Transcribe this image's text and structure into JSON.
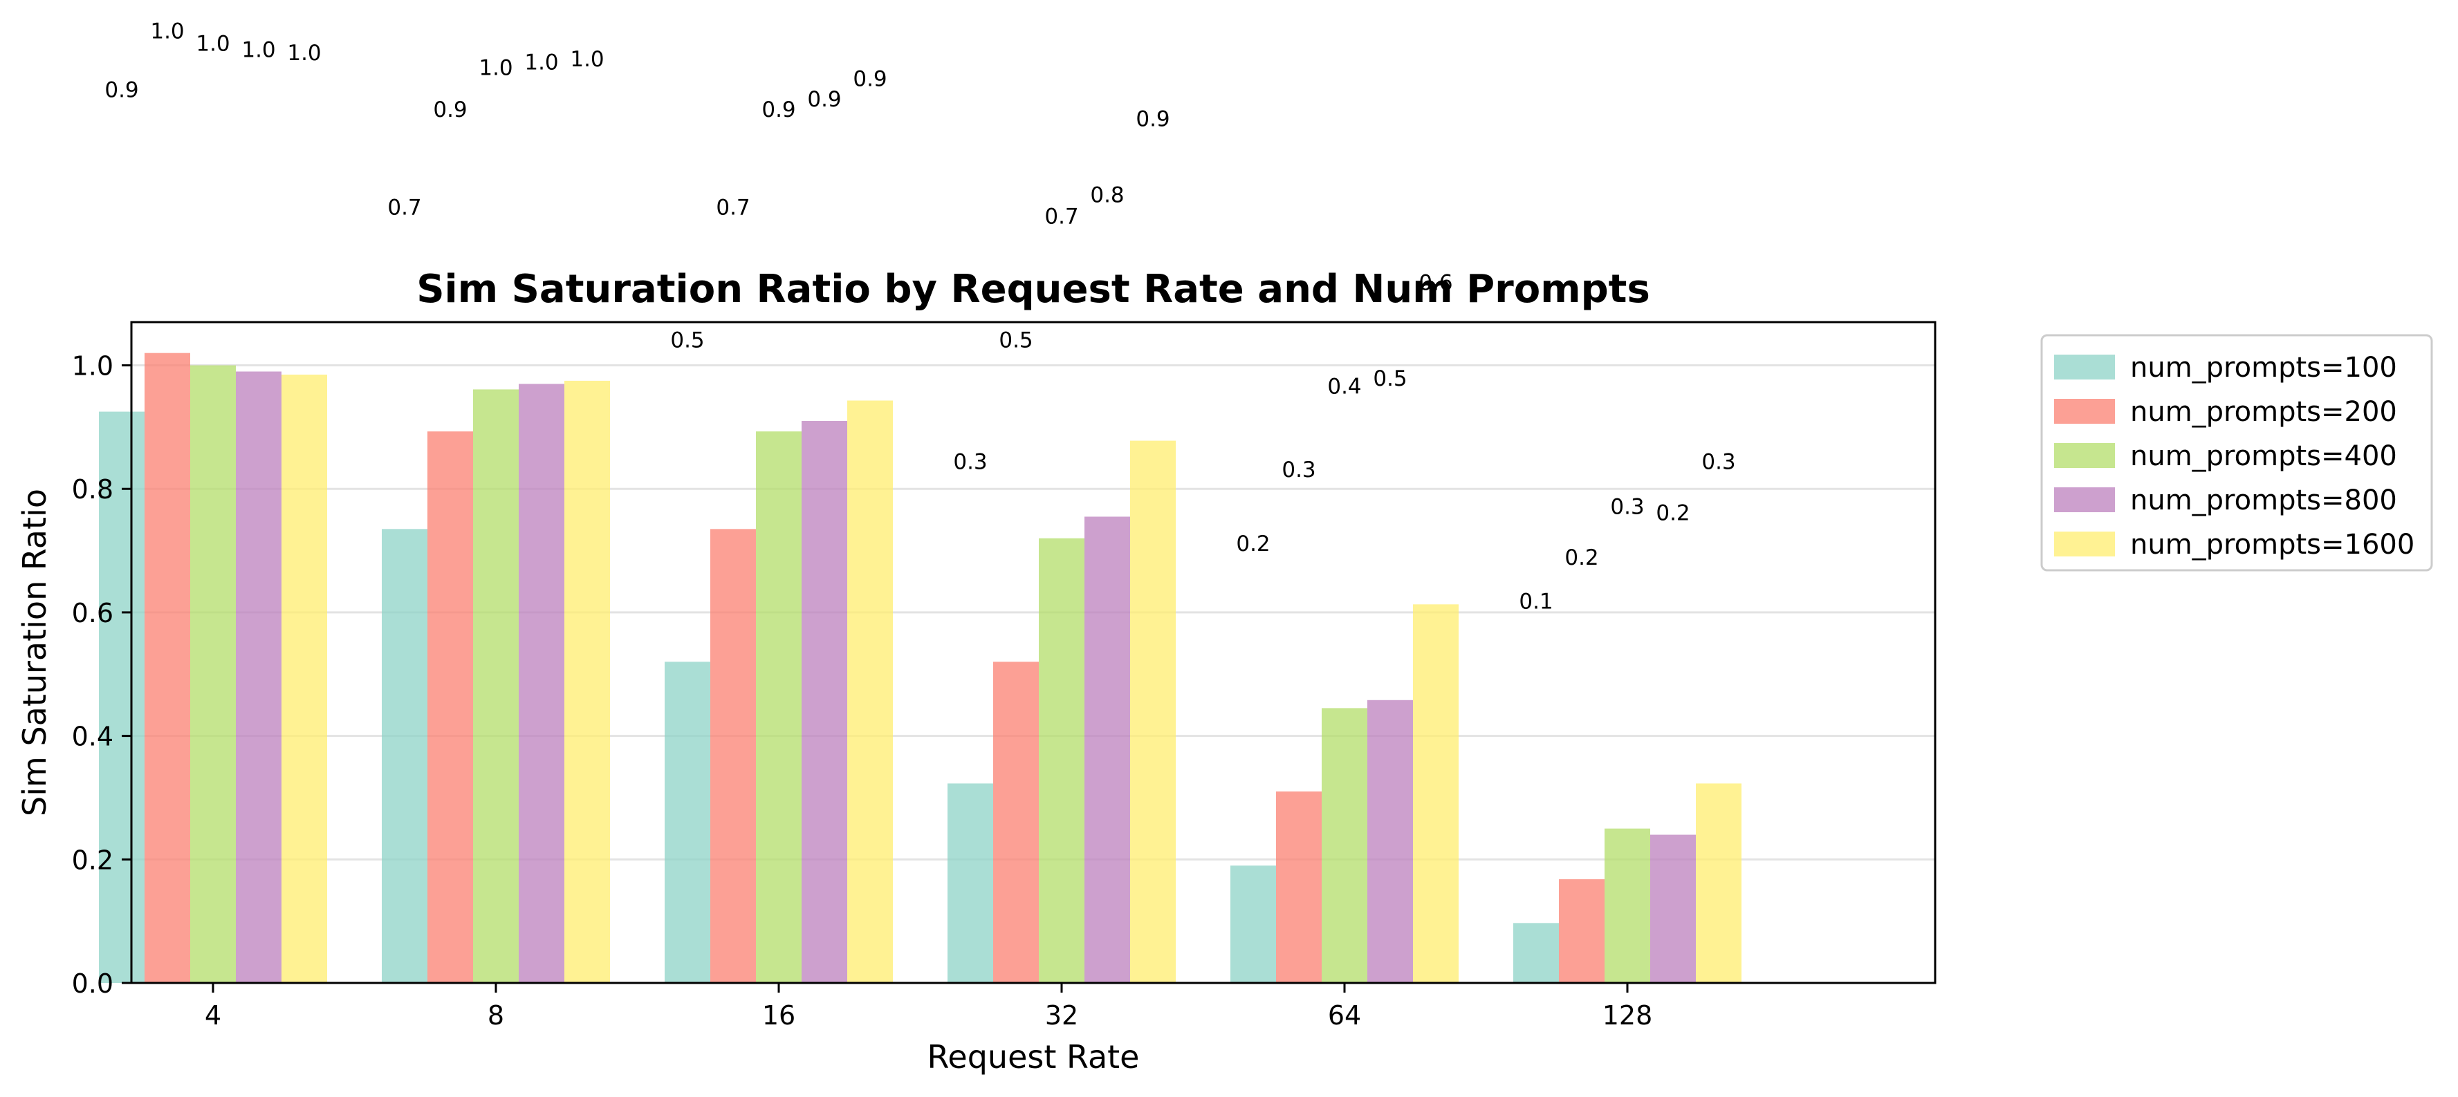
{
  "chart_data": {
    "type": "bar",
    "title": "Sim Saturation Ratio by Request Rate and Num Prompts",
    "xlabel": "Request Rate",
    "ylabel": "Sim Saturation Ratio",
    "categories": [
      "4",
      "8",
      "16",
      "32",
      "64",
      "128"
    ],
    "ylim": [
      0,
      1.07
    ],
    "yticks": [
      0.0,
      0.2,
      0.4,
      0.6,
      0.8,
      1.0
    ],
    "ytick_labels": [
      "0.0",
      "0.2",
      "0.4",
      "0.6",
      "0.8",
      "1.0"
    ],
    "grid": "horizontal",
    "legend_position": "outside-right-top",
    "series": [
      {
        "name": "num_prompts=100",
        "color": "#8dd3c7",
        "values": [
          0.925,
          0.735,
          0.52,
          0.323,
          0.19,
          0.097
        ],
        "data_labels": [
          "0.9",
          "0.7",
          "0.5",
          "0.3",
          "0.2",
          "0.1"
        ]
      },
      {
        "name": "num_prompts=200",
        "color": "#fb8072",
        "values": [
          1.02,
          0.893,
          0.735,
          0.52,
          0.31,
          0.168
        ],
        "data_labels": [
          "1.0",
          "0.9",
          "0.7",
          "0.5",
          "0.3",
          "0.2"
        ]
      },
      {
        "name": "num_prompts=400",
        "color": "#b3de69",
        "values": [
          1.0,
          0.961,
          0.893,
          0.72,
          0.445,
          0.25
        ],
        "data_labels": [
          "1.0",
          "1.0",
          "0.9",
          "0.7",
          "0.4",
          "0.3"
        ]
      },
      {
        "name": "num_prompts=800",
        "color": "#bc80bd",
        "values": [
          0.99,
          0.97,
          0.91,
          0.755,
          0.458,
          0.24
        ],
        "data_labels": [
          "1.0",
          "1.0",
          "0.9",
          "0.8",
          "0.5",
          "0.2"
        ]
      },
      {
        "name": "num_prompts=1600",
        "color": "#ffed6f",
        "values": [
          0.985,
          0.975,
          0.943,
          0.878,
          0.613,
          0.323
        ],
        "data_labels": [
          "1.0",
          "1.0",
          "0.9",
          "0.9",
          "0.6",
          "0.3"
        ]
      }
    ]
  }
}
